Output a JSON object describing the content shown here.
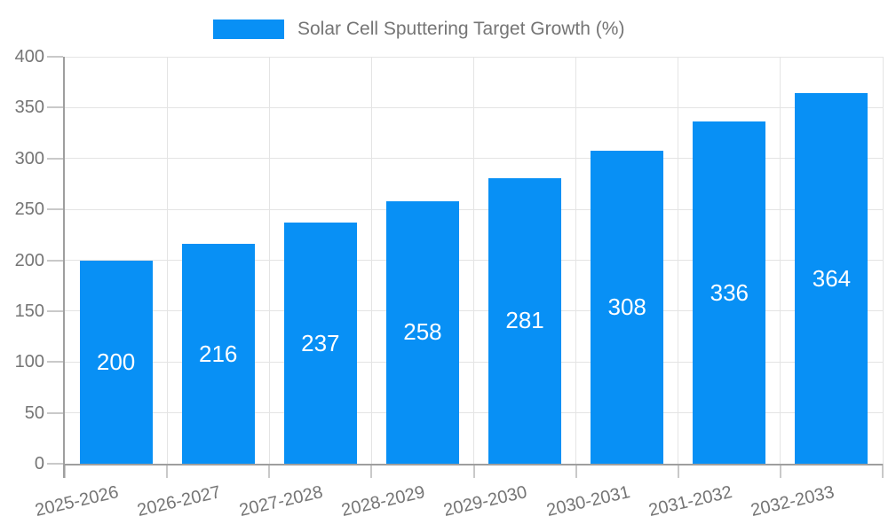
{
  "legend": {
    "label": "Solar Cell Sputtering Target Growth (%)"
  },
  "colors": {
    "bar": "#0890f5",
    "grid": "#e4e4e4",
    "axis": "#9e9e9e",
    "tick": "#c9c9c9",
    "text": "#757575",
    "value_label": "#ffffff",
    "background": "#ffffff"
  },
  "chart_data": {
    "type": "bar",
    "title": "Solar Cell Sputtering Target Growth (%)",
    "categories": [
      "2025-2026",
      "2026-2027",
      "2027-2028",
      "2028-2029",
      "2029-2030",
      "2030-2031",
      "2031-2032",
      "2032-2033"
    ],
    "series": [
      {
        "name": "Solar Cell Sputtering Target Growth (%)",
        "values": [
          200,
          216,
          237,
          258,
          281,
          308,
          336,
          364
        ]
      }
    ],
    "xlabel": "",
    "ylabel": "",
    "ylim": [
      0,
      400
    ],
    "ytick_step": 50,
    "yticks": [
      0,
      50,
      100,
      150,
      200,
      250,
      300,
      350,
      400
    ],
    "grid": true,
    "legend_position": "top",
    "value_labels": "inside-center"
  }
}
